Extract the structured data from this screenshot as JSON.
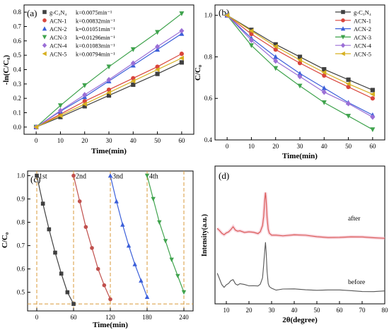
{
  "chart_data": [
    {
      "panel": "(a)",
      "type": "line",
      "ylabel": "-ln(C/C₀)",
      "xlabel": "Time(min)",
      "x": [
        0,
        10,
        20,
        30,
        40,
        50,
        60
      ],
      "xlim": [
        -5,
        65
      ],
      "ylim": [
        -0.05,
        0.85
      ],
      "xticks": [
        "0",
        "10",
        "20",
        "30",
        "40",
        "50",
        "60"
      ],
      "yticks": [
        {
          "v": 0.0,
          "t": "0.0"
        },
        {
          "v": 0.1,
          "t": "0.1"
        },
        {
          "v": 0.2,
          "t": "0.2"
        },
        {
          "v": 0.3,
          "t": "0.3"
        },
        {
          "v": 0.4,
          "t": "0.4"
        },
        {
          "v": 0.5,
          "t": "0.5"
        },
        {
          "v": 0.6,
          "t": "0.6"
        },
        {
          "v": 0.7,
          "t": "0.7"
        },
        {
          "v": 0.8,
          "t": "0.8"
        }
      ],
      "legend_position": "top-left",
      "series": [
        {
          "name": "g-C₃N₄",
          "k": "k=0.0075min⁻¹",
          "color": "#404040",
          "marker": "square",
          "values": [
            0,
            0.07,
            0.145,
            0.22,
            0.295,
            0.37,
            0.45
          ]
        },
        {
          "name": "ACN-1",
          "k": "k=0.00832min⁻¹",
          "color": "#d9453c",
          "marker": "circle",
          "values": [
            0,
            0.09,
            0.18,
            0.26,
            0.34,
            0.42,
            0.51
          ]
        },
        {
          "name": "ACN-2",
          "k": "k=0.01051min⁻¹",
          "color": "#3b5fd9",
          "marker": "triangle-up",
          "values": [
            0,
            0.11,
            0.21,
            0.32,
            0.43,
            0.54,
            0.65
          ]
        },
        {
          "name": "ACN-3",
          "k": "k=0.01296min⁻¹",
          "color": "#3fa34d",
          "marker": "triangle-down",
          "values": [
            0,
            0.15,
            0.29,
            0.42,
            0.54,
            0.66,
            0.79
          ]
        },
        {
          "name": "ACN-4",
          "k": "k=0.01083min⁻¹",
          "color": "#9b6fd6",
          "marker": "diamond",
          "values": [
            0,
            0.115,
            0.225,
            0.33,
            0.445,
            0.56,
            0.67
          ]
        },
        {
          "name": "ACN-5",
          "k": "k=0.00794min⁻¹",
          "color": "#d6b020",
          "marker": "triangle-left",
          "values": [
            0,
            0.08,
            0.16,
            0.24,
            0.32,
            0.4,
            0.48
          ]
        }
      ]
    },
    {
      "panel": "(b)",
      "type": "line",
      "ylabel": "C/C₀",
      "xlabel": "Time(min)",
      "x": [
        0,
        10,
        20,
        30,
        40,
        50,
        60
      ],
      "xlim": [
        -5,
        65
      ],
      "ylim": [
        0.4,
        1.05
      ],
      "xticks": [
        "0",
        "10",
        "20",
        "30",
        "40",
        "50",
        "60"
      ],
      "yticks": [
        {
          "v": 0.4,
          "t": "0.4"
        },
        {
          "v": 0.6,
          "t": "0.6"
        },
        {
          "v": 0.8,
          "t": "0.8"
        },
        {
          "v": 1.0,
          "t": "1.0"
        }
      ],
      "legend_position": "top-right",
      "series": [
        {
          "name": "g-C₃N₄",
          "color": "#404040",
          "marker": "square",
          "values": [
            1.0,
            0.93,
            0.86,
            0.8,
            0.74,
            0.69,
            0.64
          ]
        },
        {
          "name": "ACN-1",
          "color": "#d9453c",
          "marker": "circle",
          "values": [
            1.0,
            0.91,
            0.835,
            0.77,
            0.71,
            0.655,
            0.6
          ]
        },
        {
          "name": "ACN-2",
          "color": "#3b5fd9",
          "marker": "triangle-up",
          "values": [
            1.0,
            0.89,
            0.8,
            0.72,
            0.65,
            0.58,
            0.52
          ]
        },
        {
          "name": "ACN-3",
          "color": "#3fa34d",
          "marker": "triangle-down",
          "values": [
            1.0,
            0.855,
            0.745,
            0.66,
            0.58,
            0.515,
            0.45
          ]
        },
        {
          "name": "ACN-4",
          "color": "#9b6fd6",
          "marker": "diamond",
          "values": [
            1.0,
            0.88,
            0.78,
            0.705,
            0.63,
            0.575,
            0.51
          ]
        },
        {
          "name": "ACN-5",
          "color": "#d6b020",
          "marker": "triangle-left",
          "values": [
            1.0,
            0.925,
            0.85,
            0.785,
            0.725,
            0.67,
            0.62
          ]
        }
      ]
    },
    {
      "panel": "(c)",
      "type": "line",
      "ylabel": "C/C₀",
      "xlabel": "Time(min)",
      "xlim": [
        -15,
        255
      ],
      "ylim": [
        0.42,
        1.02
      ],
      "xticks": [
        "0",
        "60",
        "120",
        "180",
        "240"
      ],
      "xtick_values": [
        0,
        60,
        120,
        180,
        240
      ],
      "yticks": [
        {
          "v": 0.5,
          "t": "0.5"
        },
        {
          "v": 0.6,
          "t": "0.6"
        },
        {
          "v": 0.7,
          "t": "0.7"
        },
        {
          "v": 0.8,
          "t": "0.8"
        },
        {
          "v": 0.9,
          "t": "0.9"
        },
        {
          "v": 1.0,
          "t": "1.0"
        }
      ],
      "guide_color": "#d99a3a",
      "guide_y": 0.45,
      "guide_x": [
        0,
        60,
        120,
        180,
        240
      ],
      "series": [
        {
          "name": "1st",
          "color": "#404040",
          "marker": "square",
          "x": [
            0,
            10,
            20,
            30,
            40,
            50,
            60
          ],
          "values": [
            1.0,
            0.88,
            0.77,
            0.67,
            0.58,
            0.5,
            0.45
          ]
        },
        {
          "name": "2nd",
          "color": "#c0504d",
          "marker": "circle",
          "x": [
            60,
            70,
            80,
            90,
            100,
            110,
            120
          ],
          "values": [
            1.0,
            0.89,
            0.78,
            0.69,
            0.6,
            0.53,
            0.47
          ]
        },
        {
          "name": "3nd",
          "color": "#3b5fd9",
          "marker": "triangle-up",
          "x": [
            120,
            130,
            140,
            150,
            160,
            170,
            180
          ],
          "values": [
            1.0,
            0.89,
            0.79,
            0.7,
            0.62,
            0.55,
            0.48
          ]
        },
        {
          "name": "4th",
          "color": "#3fa34d",
          "marker": "triangle-down",
          "x": [
            180,
            190,
            200,
            210,
            220,
            230,
            240
          ],
          "values": [
            1.0,
            0.9,
            0.8,
            0.72,
            0.64,
            0.57,
            0.5
          ]
        }
      ]
    },
    {
      "panel": "(d)",
      "type": "line",
      "ylabel": "Intensity(a.u.)",
      "xlabel": "2θ(degree)",
      "xlim": [
        5,
        80
      ],
      "xticks": [
        "10",
        "20",
        "30",
        "40",
        "50",
        "60",
        "70",
        "80"
      ],
      "xtick_values": [
        10,
        20,
        30,
        40,
        50,
        60,
        70,
        80
      ],
      "series": [
        {
          "name": "after",
          "color": "#d9534f",
          "offset": 1.35,
          "x": [
            6,
            7,
            8,
            9,
            10,
            11,
            12,
            13,
            14,
            15,
            16,
            18,
            20,
            22,
            24,
            25,
            26,
            26.5,
            27,
            27.3,
            27.6,
            28,
            28.5,
            29,
            30,
            32,
            35,
            40,
            45,
            50,
            55,
            60,
            65,
            70,
            75,
            80
          ],
          "values": [
            0.25,
            0.18,
            0.1,
            0.06,
            0.12,
            0.16,
            0.22,
            0.28,
            0.18,
            0.15,
            0.17,
            0.15,
            0.14,
            0.13,
            0.12,
            0.16,
            0.3,
            0.55,
            0.95,
            1.15,
            0.95,
            0.5,
            0.22,
            0.12,
            0.08,
            0.06,
            0.05,
            0.06,
            0.05,
            0.03,
            0.02,
            0.015,
            0.01,
            0.005,
            0.0,
            0.0
          ]
        },
        {
          "name": "before",
          "color": "#555555",
          "offset": 0.0,
          "x": [
            6,
            7,
            8,
            9,
            10,
            11,
            12,
            13,
            14,
            15,
            16,
            18,
            20,
            22,
            24,
            25,
            26,
            26.5,
            27,
            27.3,
            27.6,
            28,
            28.5,
            29,
            30,
            32,
            35,
            40,
            45,
            50,
            55,
            60,
            65,
            70,
            75,
            80
          ],
          "values": [
            0.45,
            0.32,
            0.18,
            0.1,
            0.15,
            0.18,
            0.26,
            0.3,
            0.2,
            0.16,
            0.18,
            0.16,
            0.15,
            0.13,
            0.12,
            0.18,
            0.35,
            0.65,
            1.05,
            1.22,
            1.0,
            0.5,
            0.2,
            0.1,
            0.06,
            0.04,
            0.04,
            0.06,
            0.05,
            0.03,
            0.02,
            0.015,
            0.01,
            0.005,
            0.0,
            0.0
          ]
        }
      ]
    }
  ]
}
